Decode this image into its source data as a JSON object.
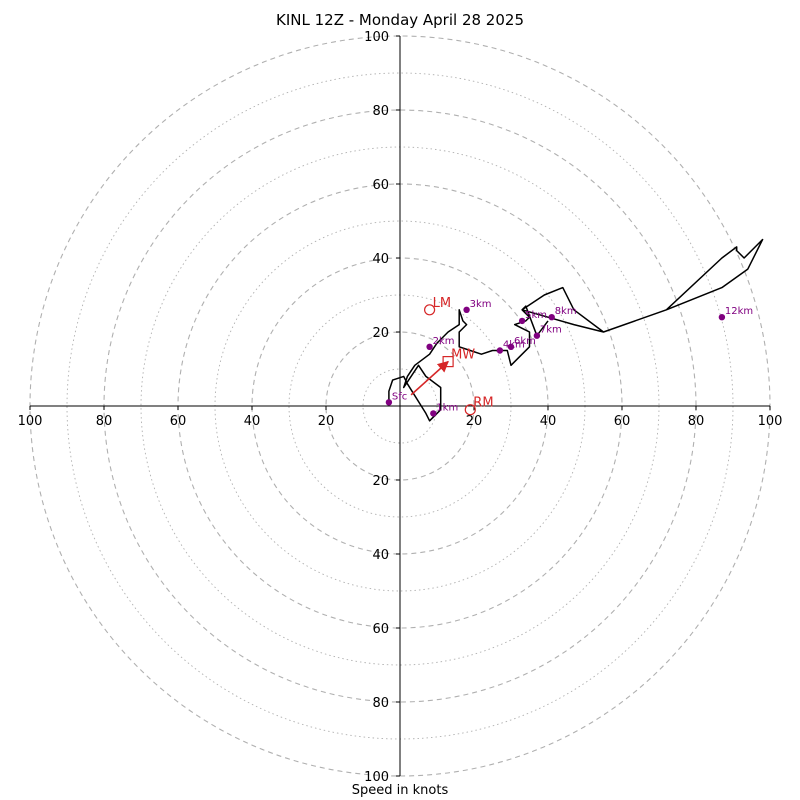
{
  "title": "KINL 12Z - Monday April 28 2025",
  "xlabel": "Speed in knots",
  "chart_data": {
    "type": "scatter",
    "title": "KINL 12Z - Monday April 28 2025",
    "xlabel": "Speed in knots",
    "ylabel": "",
    "xlim": [
      -100,
      100
    ],
    "ylim": [
      -100,
      100
    ],
    "grid": "polar rings every 10 knots",
    "tick_values": [
      20,
      40,
      60,
      80,
      100
    ],
    "tick_labels": [
      "20",
      "40",
      "60",
      "80",
      "100"
    ],
    "hodograph": {
      "u": [
        -3,
        -3,
        -2,
        1,
        2,
        7,
        8,
        11,
        11,
        7,
        5,
        1,
        2,
        4,
        8,
        10,
        13,
        16,
        16,
        17,
        18,
        16,
        16,
        19,
        22,
        25,
        27,
        29,
        30,
        30,
        33,
        35,
        35,
        33,
        31,
        34,
        35,
        33,
        36,
        39,
        44,
        47,
        55,
        72,
        87,
        94,
        98,
        93,
        91,
        91,
        87,
        72,
        55,
        47,
        40,
        33,
        34,
        37,
        40
      ],
      "v": [
        1,
        4,
        7,
        8,
        6,
        -2,
        -4,
        -1,
        5,
        8,
        11,
        5,
        8,
        11,
        14,
        17,
        20,
        22,
        26,
        23,
        22,
        20,
        16,
        15,
        14,
        15,
        15,
        15,
        11,
        11,
        14,
        16,
        20,
        21,
        22,
        23,
        24,
        26,
        28,
        30,
        32,
        26,
        20,
        26,
        32,
        37,
        45,
        40,
        42,
        43,
        40,
        26,
        20,
        22,
        24,
        26,
        27,
        19,
        23
      ]
    },
    "height_markers": [
      {
        "label": "Sfc",
        "u": -3,
        "v": 1
      },
      {
        "label": "1km",
        "u": 9,
        "v": -2
      },
      {
        "label": "2km",
        "u": 8,
        "v": 16
      },
      {
        "label": "3km",
        "u": 18,
        "v": 26
      },
      {
        "label": "4km",
        "u": 27,
        "v": 15
      },
      {
        "label": "6km",
        "u": 30,
        "v": 16
      },
      {
        "label": "5km",
        "u": 33,
        "v": 23
      },
      {
        "label": "7km",
        "u": 37,
        "v": 19
      },
      {
        "label": "8km",
        "u": 41,
        "v": 24
      },
      {
        "label": "12km",
        "u": 87,
        "v": 24
      }
    ],
    "storm_motion": [
      {
        "label": "LM",
        "u": 8,
        "v": 26,
        "marker": "circle"
      },
      {
        "label": "MW",
        "u": 13,
        "v": 12,
        "marker": "square"
      },
      {
        "label": "RM",
        "u": 19,
        "v": -1,
        "marker": "circle"
      }
    ],
    "shear_arrow": {
      "from_u": 3,
      "from_v": 3,
      "to_u": 13,
      "to_v": 12
    },
    "colors": {
      "hodograph": "#000000",
      "height_marker": "#800080",
      "storm_motion": "#d62728",
      "grid": "#b0b0b0"
    }
  }
}
